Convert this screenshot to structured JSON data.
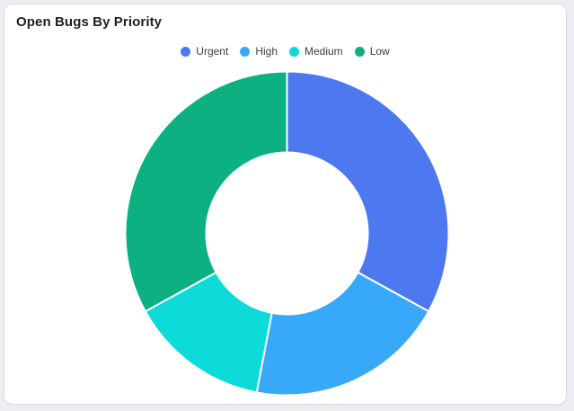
{
  "card": {
    "title": "Open Bugs By Priority"
  },
  "legend": {
    "items": [
      {
        "label": "Urgent",
        "color": "#4e78ef"
      },
      {
        "label": "High",
        "color": "#38a9f8"
      },
      {
        "label": "Medium",
        "color": "#0cdbda"
      },
      {
        "label": "Low",
        "color": "#0db181"
      }
    ]
  },
  "chart_data": {
    "type": "pie",
    "subtype": "doughnut",
    "title": "Open Bugs By Priority",
    "labels": [
      "Urgent",
      "High",
      "Medium",
      "Low"
    ],
    "values": [
      33,
      20,
      14,
      33
    ],
    "unit": "percent",
    "colors": [
      "#4e78ef",
      "#38a9f8",
      "#0cdbda",
      "#0db181"
    ],
    "cutout_ratio": 0.5,
    "rotation_deg": 0,
    "direction": "clockwise",
    "legend_position": "top",
    "slice_border_color": "#ffffff",
    "slice_border_width": 2
  }
}
